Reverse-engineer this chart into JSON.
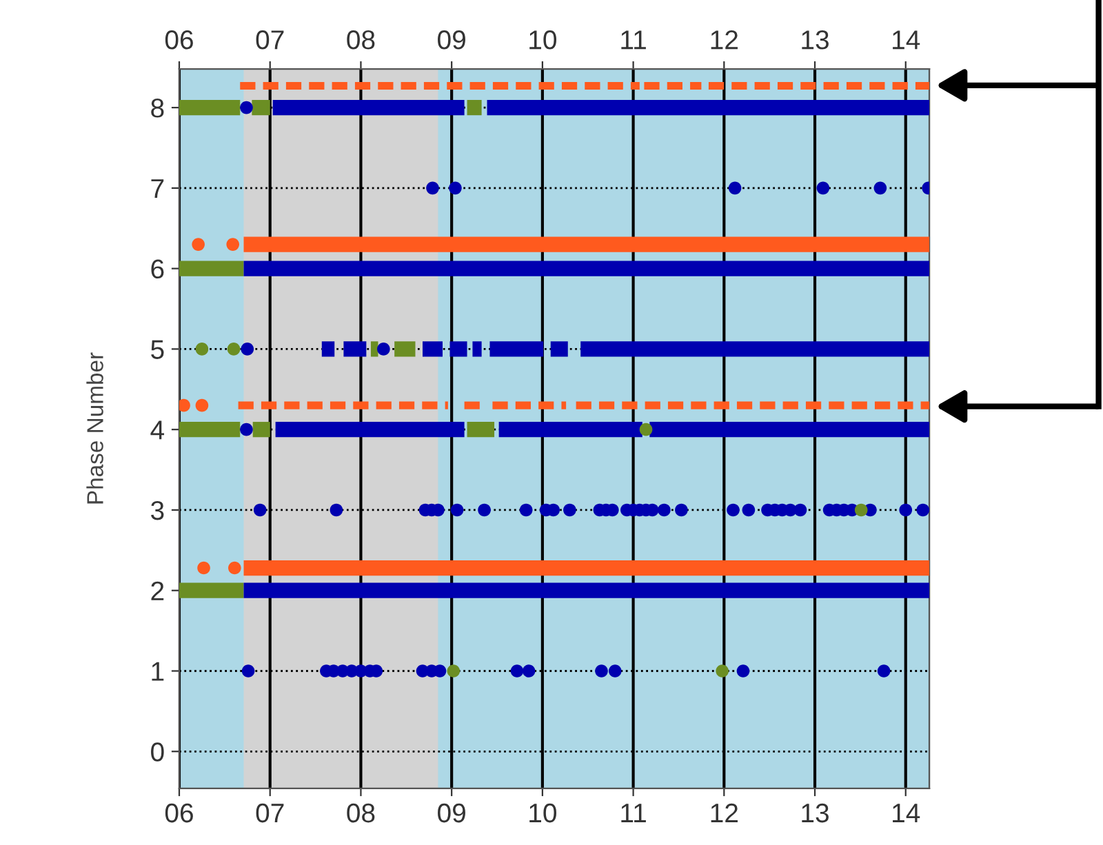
{
  "chart_data": {
    "type": "scatter",
    "ylabel": "Phase Number",
    "xlim": [
      6.0,
      14.26
    ],
    "xticks": [
      {
        "value": 6,
        "label": "06"
      },
      {
        "value": 7,
        "label": "07"
      },
      {
        "value": 8,
        "label": "08"
      },
      {
        "value": 9,
        "label": "09"
      },
      {
        "value": 10,
        "label": "10"
      },
      {
        "value": 11,
        "label": "11"
      },
      {
        "value": 12,
        "label": "12"
      },
      {
        "value": 13,
        "label": "13"
      },
      {
        "value": 14,
        "label": "14"
      }
    ],
    "x2lim": [
      6.0,
      14.26
    ],
    "x2ticks": [
      {
        "value": 6,
        "label": "06"
      },
      {
        "value": 7,
        "label": "07"
      },
      {
        "value": 8,
        "label": "08"
      },
      {
        "value": 9,
        "label": "09"
      },
      {
        "value": 10,
        "label": "10"
      },
      {
        "value": 11,
        "label": "11"
      },
      {
        "value": 12,
        "label": "12"
      },
      {
        "value": 13,
        "label": "13"
      },
      {
        "value": 14,
        "label": "14"
      }
    ],
    "ylim": [
      -0.46,
      8.48
    ],
    "yticks": [
      0,
      1,
      2,
      3,
      4,
      5,
      6,
      7,
      8
    ],
    "grid": true,
    "legend": false,
    "bands": [
      {
        "axis": "x",
        "from": 6.71,
        "to": 8.85,
        "color": "#d3d3d3"
      }
    ],
    "series": [
      {
        "type": "line",
        "color": "#6b8e23",
        "line_style": "solid",
        "x": [
          6.0,
          6.67
        ],
        "values": [
          8,
          8
        ]
      },
      {
        "type": "line",
        "color": "#6b8e23",
        "line_style": "solid",
        "x": [
          6.8,
          7.0
        ],
        "values": [
          8,
          8
        ]
      },
      {
        "type": "line",
        "color": "#6b8e23",
        "line_style": "solid",
        "x": [
          9.17,
          9.33
        ],
        "values": [
          8,
          8
        ]
      },
      {
        "type": "line",
        "color": "#6b8e23",
        "line_style": "solid",
        "x": [
          6.0,
          6.71
        ],
        "values": [
          6,
          6
        ]
      },
      {
        "type": "line",
        "color": "#6b8e23",
        "line_style": "solid",
        "x": [
          6.0,
          6.71
        ],
        "values": [
          2,
          2
        ]
      },
      {
        "type": "line",
        "color": "#6b8e23",
        "line_style": "solid",
        "x": [
          6.0,
          6.67
        ],
        "values": [
          4,
          4
        ]
      },
      {
        "type": "line",
        "color": "#6b8e23",
        "line_style": "solid",
        "x": [
          6.81,
          7.0
        ],
        "values": [
          4,
          4
        ]
      },
      {
        "type": "line",
        "color": "#6b8e23",
        "line_style": "solid",
        "x": [
          9.17,
          9.47
        ],
        "values": [
          4,
          4
        ]
      },
      {
        "type": "line",
        "color": "#6b8e23",
        "line_style": "solid",
        "x": [
          8.37,
          8.6
        ],
        "values": [
          5,
          5
        ]
      },
      {
        "type": "line",
        "color": "#6b8e23",
        "line_style": "solid",
        "x": [
          8.11,
          8.19
        ],
        "values": [
          5,
          5
        ]
      },
      {
        "type": "line",
        "color": "#0000b0",
        "line_style": "solid",
        "x": [
          7.03,
          9.14
        ],
        "values": [
          8,
          8
        ]
      },
      {
        "type": "line",
        "color": "#0000b0",
        "line_style": "solid",
        "x": [
          9.39,
          14.26
        ],
        "values": [
          8,
          8
        ]
      },
      {
        "type": "line",
        "color": "#0000b0",
        "line_style": "solid",
        "x": [
          6.71,
          14.26
        ],
        "values": [
          6,
          6
        ]
      },
      {
        "type": "line",
        "color": "#0000b0",
        "line_style": "solid",
        "x": [
          6.71,
          14.26
        ],
        "values": [
          2,
          2
        ]
      },
      {
        "type": "line",
        "color": "#0000b0",
        "line_style": "solid",
        "x": [
          7.06,
          9.14
        ],
        "values": [
          4,
          4
        ]
      },
      {
        "type": "line",
        "color": "#0000b0",
        "line_style": "solid",
        "x": [
          9.52,
          11.1
        ],
        "values": [
          4,
          4
        ]
      },
      {
        "type": "line",
        "color": "#0000b0",
        "line_style": "solid",
        "x": [
          11.18,
          14.26
        ],
        "values": [
          4,
          4
        ]
      },
      {
        "type": "line",
        "color": "#0000b0",
        "line_style": "solid",
        "x": [
          7.57,
          7.71
        ],
        "values": [
          5,
          5
        ]
      },
      {
        "type": "line",
        "color": "#0000b0",
        "line_style": "solid",
        "x": [
          7.81,
          8.06
        ],
        "values": [
          5,
          5
        ]
      },
      {
        "type": "line",
        "color": "#0000b0",
        "line_style": "solid",
        "x": [
          8.68,
          8.9
        ],
        "values": [
          5,
          5
        ]
      },
      {
        "type": "line",
        "color": "#0000b0",
        "line_style": "solid",
        "x": [
          8.98,
          9.17
        ],
        "values": [
          5,
          5
        ]
      },
      {
        "type": "line",
        "color": "#0000b0",
        "line_style": "solid",
        "x": [
          9.23,
          9.33
        ],
        "values": [
          5,
          5
        ]
      },
      {
        "type": "line",
        "color": "#0000b0",
        "line_style": "solid",
        "x": [
          9.42,
          10.01
        ],
        "values": [
          5,
          5
        ]
      },
      {
        "type": "line",
        "color": "#0000b0",
        "line_style": "solid",
        "x": [
          10.09,
          10.28
        ],
        "values": [
          5,
          5
        ]
      },
      {
        "type": "line",
        "color": "#0000b0",
        "line_style": "solid",
        "x": [
          10.42,
          14.26
        ],
        "values": [
          5,
          5
        ]
      },
      {
        "type": "line",
        "color": "#ff5a1e",
        "line_style": "solid",
        "x": [
          6.71,
          14.26
        ],
        "values": [
          6.3,
          6.3
        ]
      },
      {
        "type": "line",
        "color": "#ff5a1e",
        "line_style": "solid",
        "x": [
          6.71,
          14.26
        ],
        "values": [
          2.28,
          2.28
        ]
      },
      {
        "type": "line",
        "color": "#ff5a1e",
        "line_style": "dashed",
        "x": [
          6.67,
          11.07
        ],
        "values": [
          8.27,
          8.27
        ]
      },
      {
        "type": "line",
        "color": "#ff5a1e",
        "line_style": "dashed",
        "x": [
          11.12,
          11.75
        ],
        "values": [
          8.27,
          8.27
        ]
      },
      {
        "type": "line",
        "color": "#ff5a1e",
        "line_style": "dashed",
        "x": [
          11.83,
          14.26
        ],
        "values": [
          8.27,
          8.27
        ]
      },
      {
        "type": "line",
        "color": "#ff5a1e",
        "line_style": "dashed",
        "x": [
          6.65,
          8.96
        ],
        "values": [
          4.3,
          4.3
        ]
      },
      {
        "type": "line",
        "color": "#ff5a1e",
        "line_style": "dashed",
        "x": [
          9.14,
          9.31
        ],
        "values": [
          4.3,
          4.3
        ]
      },
      {
        "type": "line",
        "color": "#ff5a1e",
        "line_style": "dashed",
        "x": [
          9.45,
          10.26
        ],
        "values": [
          4.3,
          4.3
        ]
      },
      {
        "type": "line",
        "color": "#ff5a1e",
        "line_style": "dashed",
        "x": [
          10.37,
          14.26
        ],
        "values": [
          4.3,
          4.3
        ]
      },
      {
        "color": "#ff5a1e",
        "marker": "circle",
        "x": [
          6.21,
          6.59,
          6.27,
          6.61,
          6.05,
          6.25
        ],
        "values": [
          6.3,
          6.3,
          2.28,
          2.28,
          4.3,
          4.3
        ]
      },
      {
        "color": "#0000b0",
        "marker": "circle",
        "x": [
          6.74,
          6.74,
          6.75,
          8.25,
          8.79,
          9.04,
          12.12,
          13.09,
          13.72,
          14.25
        ],
        "values": [
          8,
          4,
          5,
          5,
          7,
          7,
          7,
          7,
          7,
          7
        ]
      },
      {
        "color": "#0000b0",
        "marker": "circle",
        "x": [
          6.89,
          7.73,
          8.71,
          8.78,
          8.85,
          9.06,
          9.36,
          9.82,
          10.04,
          10.12,
          10.3,
          10.63,
          10.7,
          10.77,
          10.93,
          11.0,
          11.07,
          11.14,
          11.21,
          11.34,
          11.53,
          12.1,
          12.27,
          12.48,
          12.56,
          12.64,
          12.73,
          12.84,
          13.16,
          13.24,
          13.32,
          13.41,
          13.61,
          14.0,
          14.19
        ],
        "values": [
          3,
          3,
          3,
          3,
          3,
          3,
          3,
          3,
          3,
          3,
          3,
          3,
          3,
          3,
          3,
          3,
          3,
          3,
          3,
          3,
          3,
          3,
          3,
          3,
          3,
          3,
          3,
          3,
          3,
          3,
          3,
          3,
          3,
          3,
          3
        ]
      },
      {
        "color": "#0000b0",
        "marker": "circle",
        "x": [
          6.76,
          7.62,
          7.7,
          7.8,
          7.9,
          8.0,
          8.1,
          8.17,
          8.68,
          8.78,
          8.87,
          9.72,
          9.85,
          10.65,
          10.8,
          12.21,
          13.76
        ],
        "values": [
          1,
          1,
          1,
          1,
          1,
          1,
          1,
          1,
          1,
          1,
          1,
          1,
          1,
          1,
          1,
          1,
          1
        ]
      },
      {
        "color": "#6b8e23",
        "marker": "circle",
        "x": [
          6.25,
          6.6,
          13.51,
          9.02,
          11.98,
          11.14
        ],
        "values": [
          5,
          5,
          3,
          1,
          1,
          4
        ]
      }
    ]
  }
}
